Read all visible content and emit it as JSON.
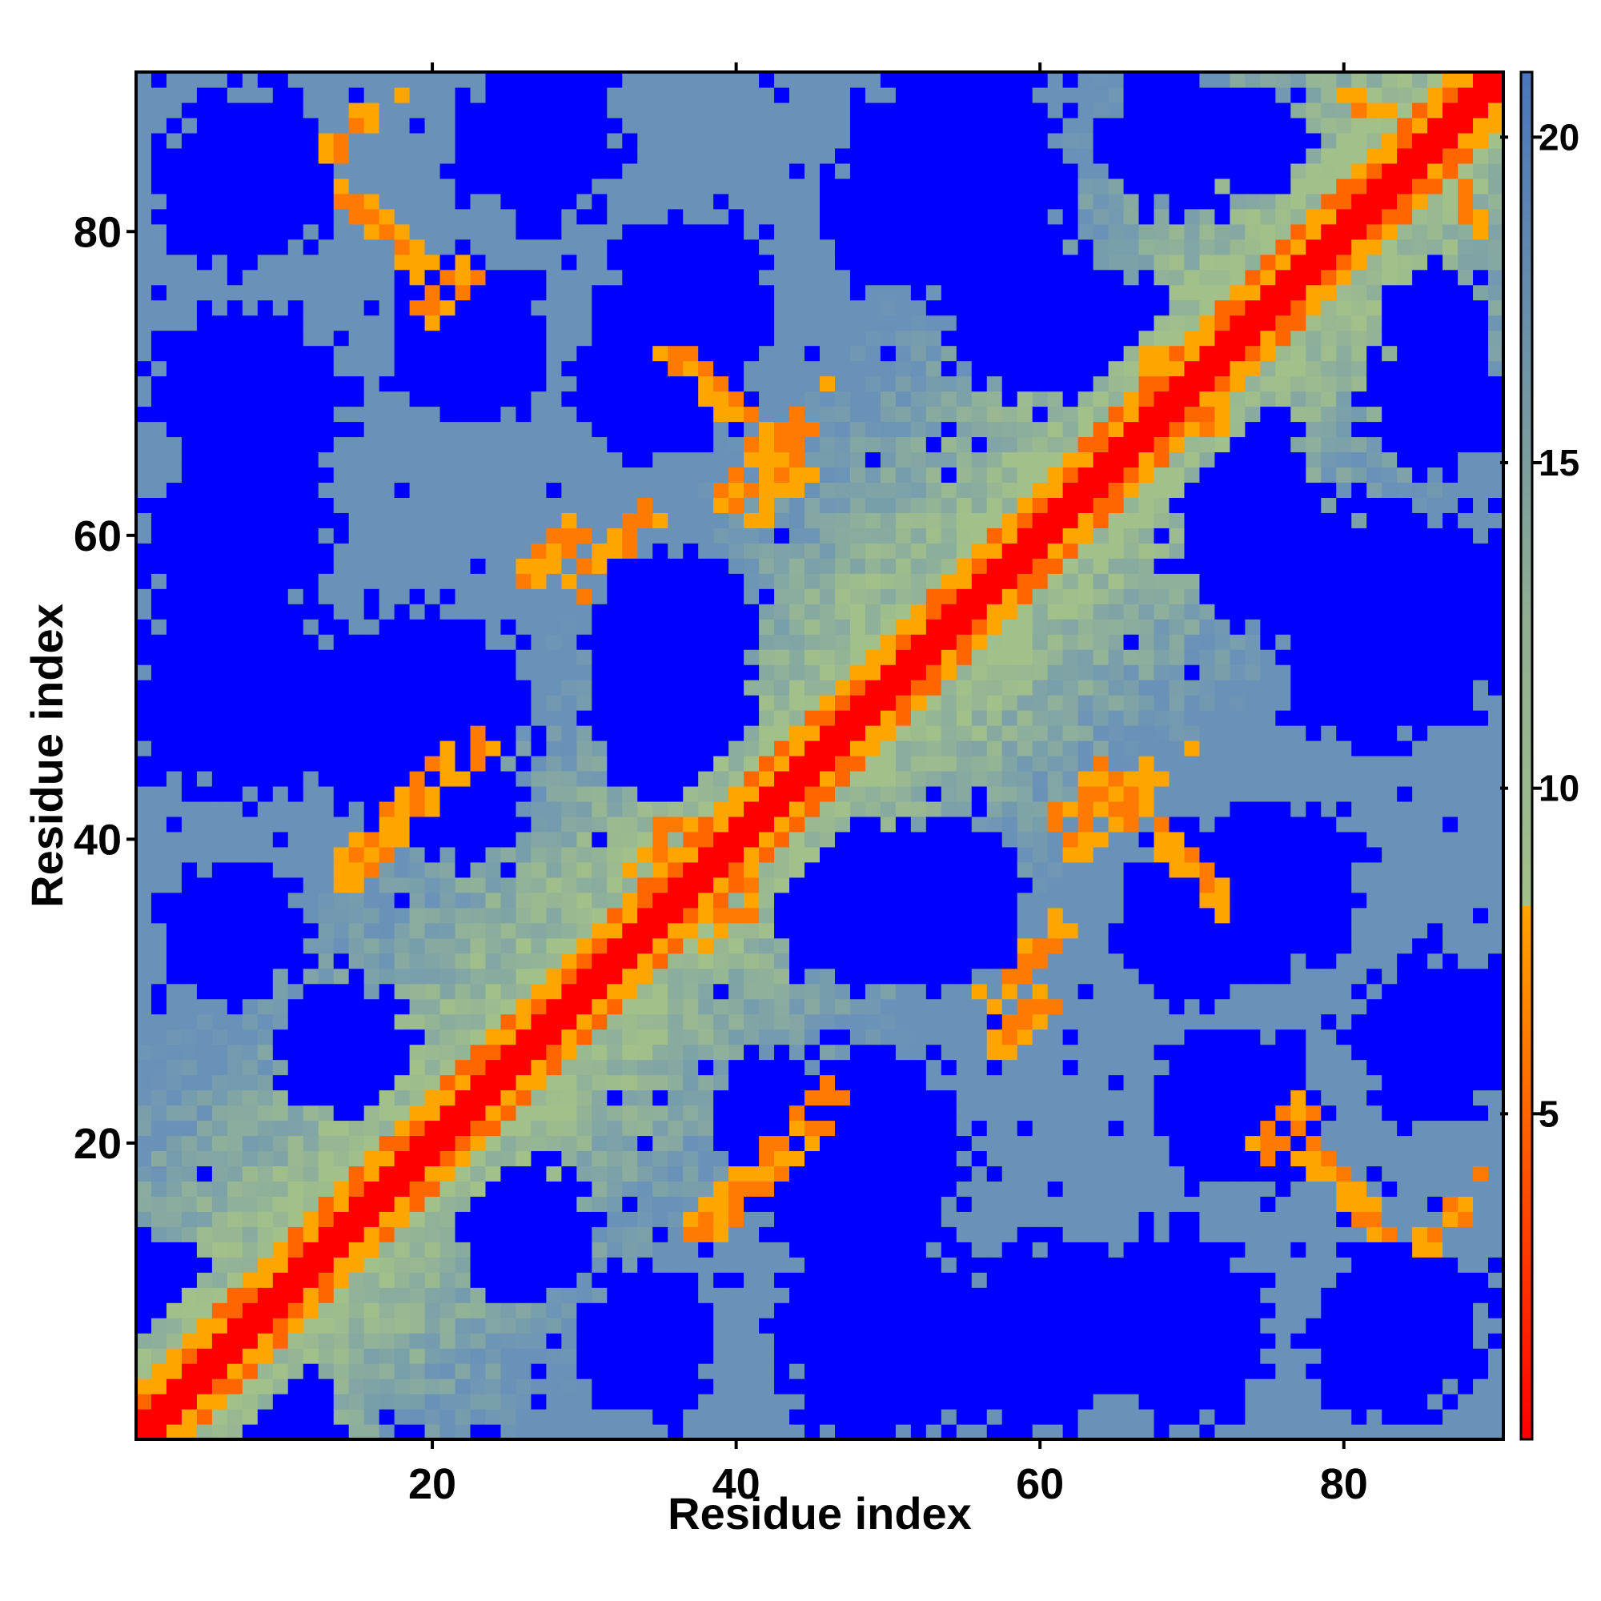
{
  "chart_data": {
    "type": "heatmap",
    "title": "",
    "xlabel": "Residue index",
    "ylabel": "Residue index",
    "xlim": [
      1,
      91
    ],
    "ylim": [
      1,
      91
    ],
    "n_residues": 90,
    "x_ticks": [
      {
        "value": 20,
        "label": "20"
      },
      {
        "value": 40,
        "label": "40"
      },
      {
        "value": 60,
        "label": "60"
      },
      {
        "value": 80,
        "label": "80"
      }
    ],
    "y_ticks": [
      {
        "value": 20,
        "label": "20"
      },
      {
        "value": 40,
        "label": "40"
      },
      {
        "value": 60,
        "label": "60"
      },
      {
        "value": 80,
        "label": "80"
      }
    ],
    "colorbar": {
      "range": [
        0,
        21
      ],
      "ticks": [
        {
          "value": 5,
          "label": "5"
        },
        {
          "value": 10,
          "label": "10"
        },
        {
          "value": 15,
          "label": "15"
        },
        {
          "value": 20,
          "label": "20"
        }
      ],
      "stops": [
        {
          "value": 0,
          "color": "#ff0000"
        },
        {
          "value": 8.2,
          "color": "#ffa500"
        },
        {
          "value": 8.2,
          "color": "#a2c08a"
        },
        {
          "value": 12.5,
          "color": "#8fae92"
        },
        {
          "value": 21,
          "color": "#4a76bd"
        }
      ],
      "saturated_color": "#0000ff"
    },
    "colors": {
      "contact_red": "#ff0000",
      "contact_orange": "#ffa500",
      "mid_green": "#a2c08a",
      "far_steel": "#6a92b8",
      "saturated_blue": "#0000ff"
    },
    "clusters": [
      {
        "center": [
          3,
          8
        ],
        "radius": 6
      },
      {
        "center": [
          7,
          34
        ],
        "radius": 5
      },
      {
        "center": [
          7,
          60
        ],
        "radius": 7
      },
      {
        "center": [
          7,
          83
        ],
        "radius": 6
      },
      {
        "center": [
          19,
          48
        ],
        "radius": 8
      },
      {
        "center": [
          22,
          73
        ],
        "radius": 6
      },
      {
        "center": [
          26,
          14
        ],
        "radius": 5
      },
      {
        "center": [
          36,
          54
        ],
        "radius": 6
      },
      {
        "center": [
          37,
          76
        ],
        "radius": 6
      },
      {
        "center": [
          42,
          22
        ],
        "radius": 4
      },
      {
        "center": [
          50,
          7
        ],
        "radius": 8
      },
      {
        "center": [
          48,
          36
        ],
        "radius": 6
      },
      {
        "center": [
          52,
          82
        ],
        "radius": 7
      },
      {
        "center": [
          60,
          74
        ],
        "radius": 6
      },
      {
        "center": [
          69,
          8
        ],
        "radius": 7
      },
      {
        "center": [
          70,
          35
        ],
        "radius": 6
      },
      {
        "center": [
          72,
          66
        ],
        "radius": 5
      },
      {
        "center": [
          69,
          86
        ],
        "radius": 5
      },
      {
        "center": [
          84,
          8
        ],
        "radius": 6
      },
      {
        "center": [
          86,
          27
        ],
        "radius": 6
      },
      {
        "center": [
          84,
          55
        ],
        "radius": 8
      },
      {
        "center": [
          86,
          74
        ],
        "radius": 4
      }
    ],
    "contact_patches": [
      {
        "x": 14,
        "y": 83,
        "len": 6,
        "dir": -1
      },
      {
        "x": 14,
        "y": 37,
        "len": 10,
        "dir": 1
      },
      {
        "x": 26,
        "y": 57,
        "len": 4,
        "dir": 1
      },
      {
        "x": 38,
        "y": 33,
        "len": 4,
        "dir": 1
      },
      {
        "x": 39,
        "y": 62,
        "len": 8,
        "dir": 1
      },
      {
        "x": 38,
        "y": 14,
        "len": 8,
        "dir": 1
      },
      {
        "x": 56,
        "y": 29,
        "len": 6,
        "dir": 1
      },
      {
        "x": 61,
        "y": 41,
        "len": 4,
        "dir": 1
      },
      {
        "x": 64,
        "y": 44,
        "len": 9,
        "dir": -1
      },
      {
        "x": 67,
        "y": 72,
        "len": 4,
        "dir": -1
      },
      {
        "x": 85,
        "y": 13,
        "len": 6,
        "dir": 1
      },
      {
        "x": 74,
        "y": 19,
        "len": 4,
        "dir": 1
      },
      {
        "x": 84,
        "y": 86,
        "len": 6,
        "dir": -1
      },
      {
        "x": 69,
        "y": 67,
        "len": 4,
        "dir": 1
      },
      {
        "x": 32,
        "y": 59,
        "len": 3,
        "dir": 1
      }
    ]
  }
}
